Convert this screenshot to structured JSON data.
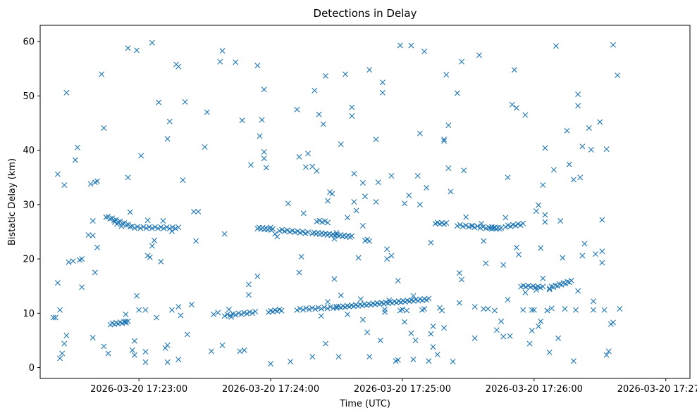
{
  "chart_data": {
    "type": "scatter",
    "title": "Detections in Delay",
    "xlabel": "Time (UTC)",
    "ylabel": "Bistatic Delay (km)",
    "marker": "x",
    "color": "#1f77b4",
    "x_unit": "seconds after 2026-03-20 17:22:00",
    "xlim": [
      15,
      311
    ],
    "ylim": [
      -2,
      63
    ],
    "xticks": [
      {
        "value": 60,
        "label": "2026-03-20 17:23:00"
      },
      {
        "value": 120,
        "label": "2026-03-20 17:24:00"
      },
      {
        "value": 180,
        "label": "2026-03-20 17:25:00"
      },
      {
        "value": 240,
        "label": "2026-03-20 17:26:00"
      },
      {
        "value": 300,
        "label": "2026-03-20 17:27:00"
      }
    ],
    "yticks": [
      {
        "value": 0,
        "label": "0"
      },
      {
        "value": 10,
        "label": "10"
      },
      {
        "value": 20,
        "label": "20"
      },
      {
        "value": 30,
        "label": "30"
      },
      {
        "value": 40,
        "label": "40"
      },
      {
        "value": 50,
        "label": "50"
      },
      {
        "value": 60,
        "label": "60"
      }
    ],
    "tracks": [
      {
        "name": "track-upper-1",
        "x_start": 45,
        "x_end": 57,
        "y_start": 27.8,
        "y_end": 25.9,
        "count": 14
      },
      {
        "name": "track-upper-2",
        "x_start": 58,
        "x_end": 78,
        "y_start": 25.8,
        "y_end": 25.7,
        "count": 16
      },
      {
        "name": "track-upper-3",
        "x_start": 114,
        "x_end": 121,
        "y_start": 25.7,
        "y_end": 25.4,
        "count": 10
      },
      {
        "name": "track-upper-4",
        "x_start": 124,
        "x_end": 137,
        "y_start": 25.3,
        "y_end": 24.8,
        "count": 12
      },
      {
        "name": "track-upper-5",
        "x_start": 139,
        "x_end": 157,
        "y_start": 24.8,
        "y_end": 24.1,
        "count": 22
      },
      {
        "name": "track-upper-6",
        "x_start": 141,
        "x_end": 146,
        "y_start": 27.0,
        "y_end": 26.8,
        "count": 5
      },
      {
        "name": "track-upper-7",
        "x_start": 163,
        "x_end": 165,
        "y_start": 23.5,
        "y_end": 23.4,
        "count": 3
      },
      {
        "name": "track-upper-8",
        "x_start": 195,
        "x_end": 200,
        "y_start": 26.6,
        "y_end": 26.5,
        "count": 6
      },
      {
        "name": "track-upper-9",
        "x_start": 205,
        "x_end": 222,
        "y_start": 26.2,
        "y_end": 25.6,
        "count": 14
      },
      {
        "name": "track-upper-10",
        "x_start": 220,
        "x_end": 225,
        "y_start": 25.8,
        "y_end": 25.6,
        "count": 8
      },
      {
        "name": "track-upper-11",
        "x_start": 227,
        "x_end": 235,
        "y_start": 26.0,
        "y_end": 26.4,
        "count": 8
      },
      {
        "name": "track-lower-1",
        "x_start": 47,
        "x_end": 55,
        "y_start": 8.0,
        "y_end": 8.4,
        "count": 10
      },
      {
        "name": "track-lower-2",
        "x_start": 99,
        "x_end": 113,
        "y_start": 9.6,
        "y_end": 10.2,
        "count": 12
      },
      {
        "name": "track-lower-3",
        "x_start": 119,
        "x_end": 125,
        "y_start": 10.3,
        "y_end": 10.6,
        "count": 7
      },
      {
        "name": "track-lower-4",
        "x_start": 132,
        "x_end": 150,
        "y_start": 10.7,
        "y_end": 11.1,
        "count": 14
      },
      {
        "name": "track-lower-5",
        "x_start": 150,
        "x_end": 192,
        "y_start": 11.1,
        "y_end": 12.6,
        "count": 44
      },
      {
        "name": "track-lower-6",
        "x_start": 234,
        "x_end": 244,
        "y_start": 15.0,
        "y_end": 14.8,
        "count": 10
      },
      {
        "name": "track-lower-7",
        "x_start": 247,
        "x_end": 257,
        "y_start": 14.7,
        "y_end": 15.9,
        "count": 12
      }
    ],
    "scatter": [
      [
        21,
        9.2
      ],
      [
        22,
        9.2
      ],
      [
        23,
        35.6
      ],
      [
        23,
        15.6
      ],
      [
        24,
        10.6
      ],
      [
        24,
        1.7
      ],
      [
        25,
        2.6
      ],
      [
        26,
        33.6
      ],
      [
        26,
        4.4
      ],
      [
        27,
        5.9
      ],
      [
        27,
        50.6
      ],
      [
        28,
        19.4
      ],
      [
        30,
        19.6
      ],
      [
        31,
        38.2
      ],
      [
        32,
        40.5
      ],
      [
        33,
        19.8
      ],
      [
        34,
        14.8
      ],
      [
        34,
        20.0
      ],
      [
        37,
        24.4
      ],
      [
        38,
        33.8
      ],
      [
        39,
        27.0
      ],
      [
        39,
        24.3
      ],
      [
        39,
        5.5
      ],
      [
        40,
        34.1
      ],
      [
        40,
        17.5
      ],
      [
        41,
        34.3
      ],
      [
        41,
        22.1
      ],
      [
        43,
        54.0
      ],
      [
        44,
        44.1
      ],
      [
        44,
        3.9
      ],
      [
        46,
        2.6
      ],
      [
        49,
        26.8
      ],
      [
        50,
        26.4
      ],
      [
        52,
        26.0
      ],
      [
        54,
        9.8
      ],
      [
        54,
        8.5
      ],
      [
        55,
        35.0
      ],
      [
        55,
        58.8
      ],
      [
        56,
        28.6
      ],
      [
        57,
        3.2
      ],
      [
        58,
        2.3
      ],
      [
        58,
        4.9
      ],
      [
        59,
        58.4
      ],
      [
        59,
        13.2
      ],
      [
        60,
        10.6
      ],
      [
        61,
        39.0
      ],
      [
        63,
        2.9
      ],
      [
        63,
        1.0
      ],
      [
        63,
        10.6
      ],
      [
        64,
        27.1
      ],
      [
        64,
        20.6
      ],
      [
        65,
        20.3
      ],
      [
        66,
        59.8
      ],
      [
        66,
        22.4
      ],
      [
        67,
        23.4
      ],
      [
        68,
        9.2
      ],
      [
        69,
        48.8
      ],
      [
        70,
        19.5
      ],
      [
        71,
        27.0
      ],
      [
        72,
        3.6
      ],
      [
        73,
        4.1
      ],
      [
        73,
        1.0
      ],
      [
        73,
        42.1
      ],
      [
        74,
        45.3
      ],
      [
        75,
        25.1
      ],
      [
        75,
        10.6
      ],
      [
        77,
        55.8
      ],
      [
        78,
        55.4
      ],
      [
        78,
        11.2
      ],
      [
        78,
        1.5
      ],
      [
        79,
        9.6
      ],
      [
        80,
        34.5
      ],
      [
        81,
        48.9
      ],
      [
        82,
        6.1
      ],
      [
        84,
        11.6
      ],
      [
        85,
        28.7
      ],
      [
        86,
        23.3
      ],
      [
        87,
        28.7
      ],
      [
        90,
        40.6
      ],
      [
        91,
        47.0
      ],
      [
        93,
        3.0
      ],
      [
        94,
        9.8
      ],
      [
        96,
        10.1
      ],
      [
        97,
        56.3
      ],
      [
        98,
        58.3
      ],
      [
        98,
        4.1
      ],
      [
        99,
        24.6
      ],
      [
        101,
        10.7
      ],
      [
        102,
        9.3
      ],
      [
        104,
        56.2
      ],
      [
        106,
        3.0
      ],
      [
        107,
        45.5
      ],
      [
        108,
        3.2
      ],
      [
        110,
        15.3
      ],
      [
        110,
        13.4
      ],
      [
        111,
        37.3
      ],
      [
        114,
        55.6
      ],
      [
        114,
        16.8
      ],
      [
        115,
        42.6
      ],
      [
        116,
        45.6
      ],
      [
        117,
        51.2
      ],
      [
        117,
        39.7
      ],
      [
        117,
        38.5
      ],
      [
        118,
        36.8
      ],
      [
        120,
        25.8
      ],
      [
        120,
        0.7
      ],
      [
        122,
        24.6
      ],
      [
        123,
        24.1
      ],
      [
        128,
        30.2
      ],
      [
        129,
        1.1
      ],
      [
        132,
        47.5
      ],
      [
        133,
        17.5
      ],
      [
        133,
        38.8
      ],
      [
        134,
        20.4
      ],
      [
        135,
        28.4
      ],
      [
        136,
        36.9
      ],
      [
        137,
        39.4
      ],
      [
        139,
        37.0
      ],
      [
        139,
        2.0
      ],
      [
        140,
        51.0
      ],
      [
        141,
        36.2
      ],
      [
        142,
        46.6
      ],
      [
        143,
        9.5
      ],
      [
        144,
        44.8
      ],
      [
        145,
        4.4
      ],
      [
        145,
        53.7
      ],
      [
        146,
        30.7
      ],
      [
        146,
        12.1
      ],
      [
        147,
        32.3
      ],
      [
        148,
        32.0
      ],
      [
        149,
        16.3
      ],
      [
        149,
        23.7
      ],
      [
        150,
        24.8
      ],
      [
        151,
        2.0
      ],
      [
        152,
        41.1
      ],
      [
        152,
        13.3
      ],
      [
        154,
        54.0
      ],
      [
        155,
        27.6
      ],
      [
        155,
        9.8
      ],
      [
        157,
        47.9
      ],
      [
        157,
        46.3
      ],
      [
        158,
        35.7
      ],
      [
        158,
        30.5
      ],
      [
        159,
        28.9
      ],
      [
        160,
        20.2
      ],
      [
        161,
        12.6
      ],
      [
        162,
        34.0
      ],
      [
        162,
        26.1
      ],
      [
        162,
        8.8
      ],
      [
        163,
        31.5
      ],
      [
        164,
        6.5
      ],
      [
        165,
        2.0
      ],
      [
        165,
        54.8
      ],
      [
        168,
        30.5
      ],
      [
        168,
        42.0
      ],
      [
        169,
        34.1
      ],
      [
        170,
        5.0
      ],
      [
        171,
        52.5
      ],
      [
        171,
        50.6
      ],
      [
        172,
        10.7
      ],
      [
        172,
        10.2
      ],
      [
        173,
        20.0
      ],
      [
        173,
        21.8
      ],
      [
        174,
        12.4
      ],
      [
        175,
        20.6
      ],
      [
        175,
        35.3
      ],
      [
        177,
        1.2
      ],
      [
        178,
        1.4
      ],
      [
        178,
        16.0
      ],
      [
        179,
        10.5
      ],
      [
        179,
        59.3
      ],
      [
        180,
        10.7
      ],
      [
        181,
        30.2
      ],
      [
        181,
        8.4
      ],
      [
        182,
        10.5
      ],
      [
        183,
        31.7
      ],
      [
        184,
        59.3
      ],
      [
        184,
        6.3
      ],
      [
        185,
        1.5
      ],
      [
        185,
        13.2
      ],
      [
        186,
        5.0
      ],
      [
        187,
        35.3
      ],
      [
        188,
        43.1
      ],
      [
        188,
        30.0
      ],
      [
        189,
        10.6
      ],
      [
        190,
        10.8
      ],
      [
        190,
        58.2
      ],
      [
        191,
        33.1
      ],
      [
        192,
        1.2
      ],
      [
        193,
        6.2
      ],
      [
        193,
        23.0
      ],
      [
        194,
        3.8
      ],
      [
        194,
        7.6
      ],
      [
        196,
        2.4
      ],
      [
        197,
        11.0
      ],
      [
        198,
        10.5
      ],
      [
        199,
        7.3
      ],
      [
        199,
        41.7
      ],
      [
        199,
        42.0
      ],
      [
        200,
        53.9
      ],
      [
        201,
        36.7
      ],
      [
        201,
        44.6
      ],
      [
        202,
        32.4
      ],
      [
        203,
        1.1
      ],
      [
        205,
        50.5
      ],
      [
        206,
        11.9
      ],
      [
        206,
        17.4
      ],
      [
        207,
        16.2
      ],
      [
        207,
        56.3
      ],
      [
        208,
        36.3
      ],
      [
        209,
        27.7
      ],
      [
        212,
        26.1
      ],
      [
        213,
        11.2
      ],
      [
        213,
        5.4
      ],
      [
        215,
        57.5
      ],
      [
        216,
        26.5
      ],
      [
        217,
        23.3
      ],
      [
        217,
        10.8
      ],
      [
        218,
        19.2
      ],
      [
        219,
        10.8
      ],
      [
        222,
        10.5
      ],
      [
        223,
        6.9
      ],
      [
        225,
        8.5
      ],
      [
        226,
        5.7
      ],
      [
        226,
        18.9
      ],
      [
        227,
        27.6
      ],
      [
        228,
        35.0
      ],
      [
        228,
        12.5
      ],
      [
        229,
        5.8
      ],
      [
        230,
        48.4
      ],
      [
        231,
        54.8
      ],
      [
        232,
        47.8
      ],
      [
        232,
        22.1
      ],
      [
        233,
        20.8
      ],
      [
        235,
        10.6
      ],
      [
        236,
        13.8
      ],
      [
        236,
        46.5
      ],
      [
        238,
        4.4
      ],
      [
        239,
        10.6
      ],
      [
        239,
        6.8
      ],
      [
        240,
        10.6
      ],
      [
        241,
        28.8
      ],
      [
        241,
        14.3
      ],
      [
        242,
        29.9
      ],
      [
        242,
        7.6
      ],
      [
        243,
        8.5
      ],
      [
        243,
        22.0
      ],
      [
        244,
        16.4
      ],
      [
        244,
        33.6
      ],
      [
        245,
        28.1
      ],
      [
        245,
        26.8
      ],
      [
        245,
        40.4
      ],
      [
        246,
        10.5
      ],
      [
        246,
        10.5
      ],
      [
        247,
        2.8
      ],
      [
        247,
        14.4
      ],
      [
        248,
        10.9
      ],
      [
        249,
        36.4
      ],
      [
        250,
        59.2
      ],
      [
        251,
        5.4
      ],
      [
        252,
        27.0
      ],
      [
        253,
        20.2
      ],
      [
        254,
        10.8
      ],
      [
        255,
        43.6
      ],
      [
        256,
        37.4
      ],
      [
        258,
        34.6
      ],
      [
        258,
        1.2
      ],
      [
        259,
        10.6
      ],
      [
        260,
        14.1
      ],
      [
        260,
        48.2
      ],
      [
        260,
        50.3
      ],
      [
        261,
        35.0
      ],
      [
        262,
        40.7
      ],
      [
        262,
        20.6
      ],
      [
        263,
        22.8
      ],
      [
        265,
        44.1
      ],
      [
        266,
        40.1
      ],
      [
        267,
        12.2
      ],
      [
        267,
        10.6
      ],
      [
        268,
        20.9
      ],
      [
        270,
        45.2
      ],
      [
        271,
        27.2
      ],
      [
        271,
        21.4
      ],
      [
        271,
        19.3
      ],
      [
        272,
        10.6
      ],
      [
        273,
        2.3
      ],
      [
        273,
        40.2
      ],
      [
        274,
        3.0
      ],
      [
        275,
        8.0
      ],
      [
        276,
        8.3
      ],
      [
        276,
        59.4
      ],
      [
        278,
        53.8
      ],
      [
        279,
        10.8
      ]
    ]
  }
}
